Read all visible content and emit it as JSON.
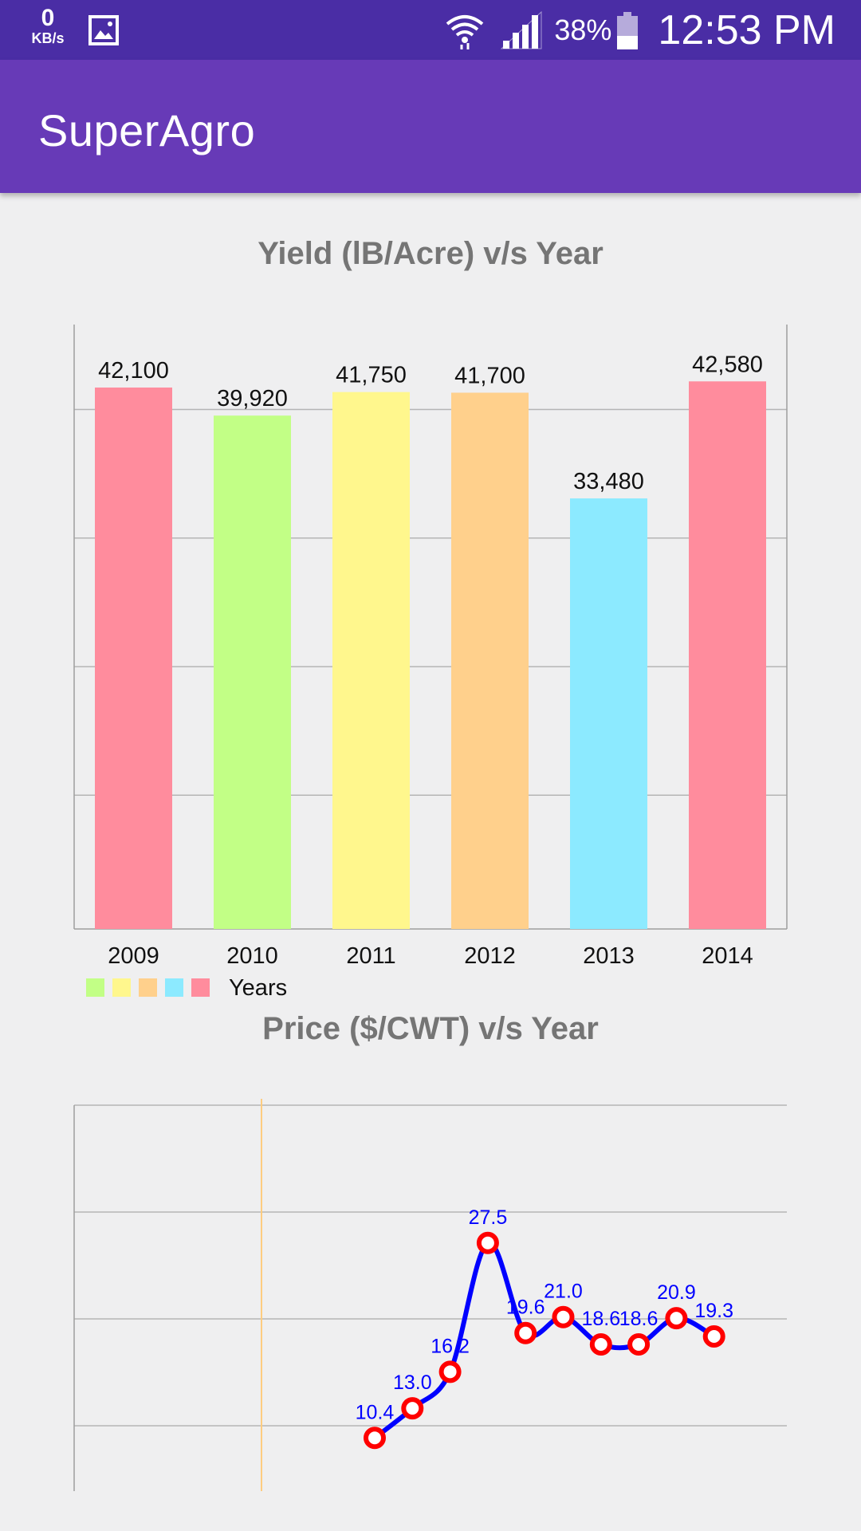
{
  "status_bar": {
    "net_speed_value": "0",
    "net_speed_unit": "KB/s",
    "battery_percent": "38%",
    "time": "12:53 PM",
    "icons": [
      "gallery-icon",
      "wifi-icon",
      "signal-icon",
      "battery-icon"
    ]
  },
  "app_bar": {
    "title": "SuperAgro"
  },
  "charts": {
    "yield_title": "Yield (lB/Acre) v/s Year",
    "price_title": "Price ($/CWT) v/s Year"
  },
  "chart_data": [
    {
      "type": "bar",
      "title": "Yield (lB/Acre) v/s Year",
      "categories": [
        "2009",
        "2010",
        "2011",
        "2012",
        "2013",
        "2014"
      ],
      "values": [
        42100,
        39920,
        41750,
        41700,
        33480,
        42580
      ],
      "value_labels": [
        "42,100",
        "39,920",
        "41,750",
        "41,700",
        "33,480",
        "42,580"
      ],
      "colors": [
        "#ff8c9d",
        "#c2ff86",
        "#fff78d",
        "#ffd08c",
        "#8ceaff",
        "#ff8c9d"
      ],
      "legend": {
        "label": "Years",
        "colors": [
          "#c2ff86",
          "#fff78d",
          "#ffd08c",
          "#8ceaff",
          "#ff8c9d"
        ],
        "position": "bottom-left"
      },
      "ylim": [
        0,
        47000
      ],
      "grid": true
    },
    {
      "type": "line",
      "title": "Price ($/CWT) v/s Year",
      "values": [
        10.4,
        13.0,
        16.2,
        27.5,
        19.6,
        21.0,
        18.6,
        18.6,
        20.9,
        19.3
      ],
      "value_labels": [
        "10.4",
        "13.0",
        "16.2",
        "27.5",
        "19.6",
        "21.0",
        "18.6",
        "18.6",
        "20.9",
        "19.3"
      ],
      "line_color": "#0000ff",
      "marker_color": "#ff0000",
      "grid": true
    }
  ]
}
